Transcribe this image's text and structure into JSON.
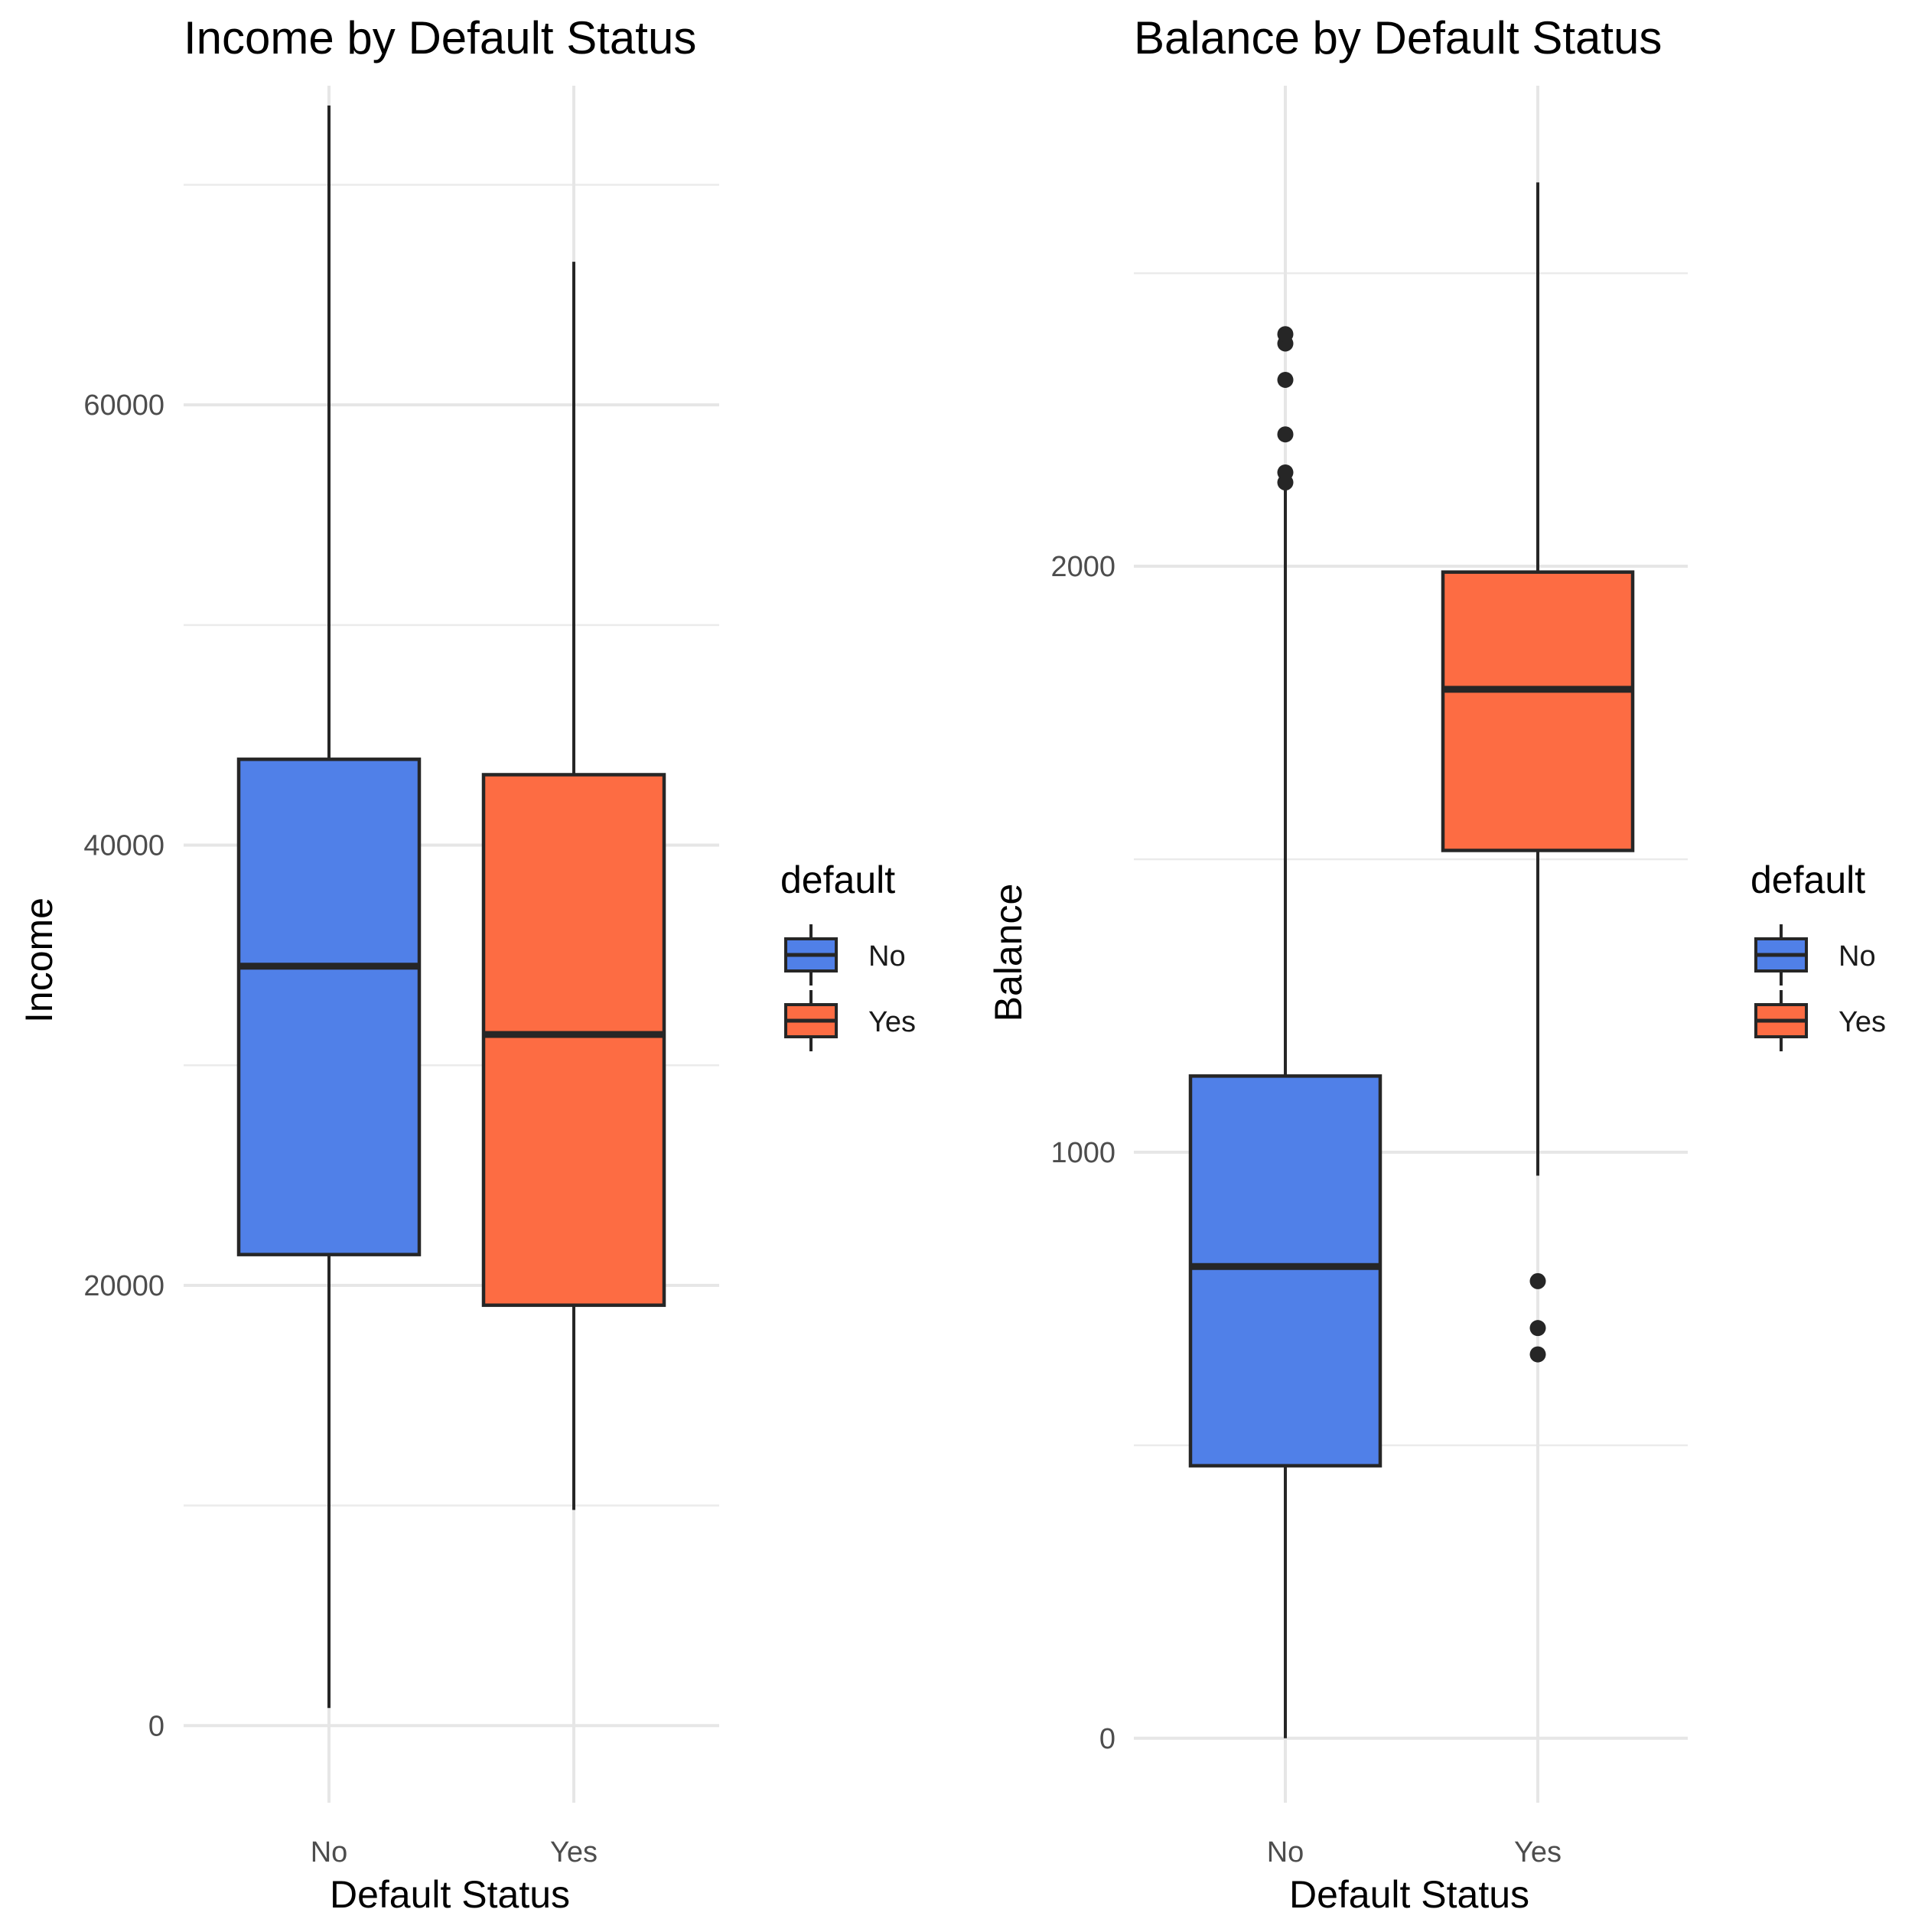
{
  "chart_data": [
    {
      "type": "boxplot",
      "title": "Income by Default Status",
      "xlabel": "Default Status",
      "ylabel": "Income",
      "categories": [
        "No",
        "Yes"
      ],
      "ylim": [
        -3500,
        74500
      ],
      "yticks": [
        0,
        20000,
        40000,
        60000
      ],
      "ytick_labels": [
        "0",
        "20000",
        "40000",
        "60000"
      ],
      "y_minor_ticks": [
        10000,
        30000,
        50000,
        70000
      ],
      "grid": true,
      "boxes": [
        {
          "category": "No",
          "whisker_low": 800,
          "q1": 21400,
          "median": 34500,
          "q3": 43900,
          "whisker_high": 73600,
          "outliers": []
        },
        {
          "category": "Yes",
          "whisker_low": 9800,
          "q1": 19100,
          "median": 31400,
          "q3": 43200,
          "whisker_high": 66500,
          "outliers": []
        }
      ],
      "legend": {
        "title": "default",
        "position": "right",
        "entries": [
          "No",
          "Yes"
        ]
      }
    },
    {
      "type": "boxplot",
      "title": "Balance by Default Status",
      "xlabel": "Default Status",
      "ylabel": "Balance",
      "categories": [
        "No",
        "Yes"
      ],
      "ylim": [
        -110,
        2820
      ],
      "yticks": [
        0,
        1000,
        2000
      ],
      "ytick_labels": [
        "0",
        "1000",
        "2000"
      ],
      "y_minor_ticks": [
        500,
        1500,
        2500
      ],
      "grid": true,
      "boxes": [
        {
          "category": "No",
          "whisker_low": 0,
          "q1": 465,
          "median": 805,
          "q3": 1130,
          "whisker_high": 2140,
          "outliers": [
            2143,
            2160,
            2225,
            2318,
            2380,
            2396
          ]
        },
        {
          "category": "Yes",
          "whisker_low": 960,
          "q1": 1515,
          "median": 1790,
          "q3": 1990,
          "whisker_high": 2655,
          "outliers": [
            655,
            700,
            780
          ]
        }
      ],
      "legend": {
        "title": "default",
        "position": "right",
        "entries": [
          "No",
          "Yes"
        ]
      }
    }
  ],
  "colors": {
    "No": "#5080e8",
    "Yes": "#fd6c43",
    "outline": "#262626",
    "grid": "#e6e6e6"
  }
}
